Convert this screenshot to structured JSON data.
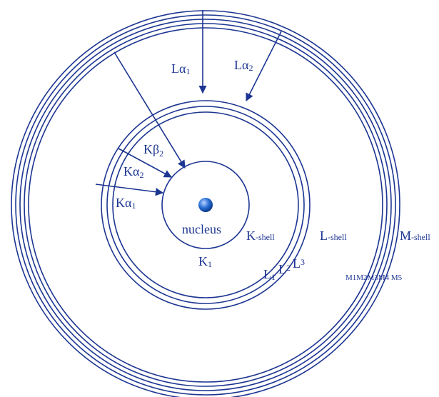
{
  "colors": {
    "stroke": "#1c3591",
    "nucleus": "#1f5fc7",
    "nucleus_highlight": "#bcd4ff"
  },
  "labels": {
    "nucleus": "nucleus",
    "k_shell": {
      "main": "K",
      "sub": "-shell"
    },
    "l_shell": {
      "main": "L",
      "sub": "-shell"
    },
    "m_shell": {
      "main": "M",
      "sub": "-shell"
    },
    "k1": {
      "main": "K",
      "sub": "1"
    },
    "l1": {
      "main": "L",
      "sub": "1"
    },
    "l2": {
      "main": "L",
      "sub": "2"
    },
    "l3": {
      "main": "L",
      "sub": "3"
    },
    "m_subshells": "M1M2M3M4 M5"
  },
  "transitions": {
    "la1": {
      "main": "Lα",
      "sub": "1"
    },
    "la2": {
      "main": "Lα",
      "sub": "2"
    },
    "kb2": {
      "main": "Kβ",
      "sub": "2"
    },
    "ka2": {
      "main": "Kα",
      "sub": "2"
    },
    "ka1": {
      "main": "Kα",
      "sub": "1"
    }
  }
}
